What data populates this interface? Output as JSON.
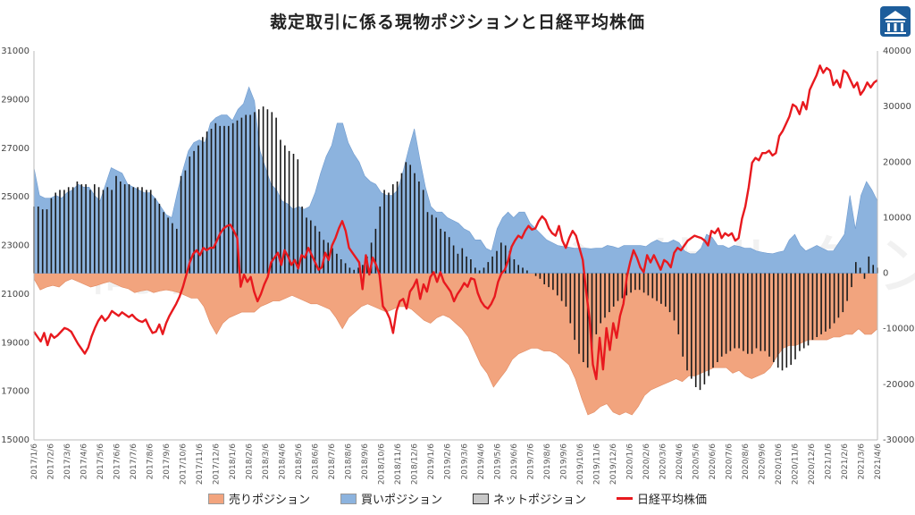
{
  "chart_data": {
    "type": "area",
    "title": "裁定取引に係る現物ポジションと日経平均株価",
    "left_axis": {
      "min": 15000,
      "max": 31000,
      "ticks": [
        31000,
        29000,
        27000,
        25000,
        23000,
        21000,
        19000,
        17000,
        15000
      ]
    },
    "right_axis": {
      "min": -30000,
      "max": 40000,
      "ticks": [
        40000,
        30000,
        20000,
        10000,
        0,
        -10000,
        -20000,
        -30000
      ]
    },
    "x_labels": [
      "2017/1/6",
      "2017/2/6",
      "2017/3/6",
      "2017/4/6",
      "2017/5/6",
      "2017/6/6",
      "2017/7/6",
      "2017/8/6",
      "2017/9/6",
      "2017/10/6",
      "2017/11/6",
      "2017/12/6",
      "2018/1/6",
      "2018/2/6",
      "2018/3/6",
      "2018/4/6",
      "2018/5/6",
      "2018/6/6",
      "2018/7/6",
      "2018/8/6",
      "2018/9/6",
      "2018/10/6",
      "2018/11/6",
      "2018/12/6",
      "2019/1/6",
      "2019/2/6",
      "2019/3/6",
      "2019/4/6",
      "2019/5/6",
      "2019/6/6",
      "2019/7/6",
      "2019/8/6",
      "2019/9/6",
      "2019/10/6",
      "2019/11/6",
      "2019/12/6",
      "2020/1/6",
      "2020/2/6",
      "2020/3/6",
      "2020/4/6",
      "2020/5/6",
      "2020/6/6",
      "2020/7/6",
      "2020/8/6",
      "2020/9/6",
      "2020/10/6",
      "2020/11/6",
      "2020/12/6",
      "2021/1/6",
      "2021/2/6",
      "2021/3/6",
      "2021/4/6"
    ],
    "legend_position": "bottom",
    "grid": false,
    "series": [
      {
        "name": "売りポジション",
        "axis": "right",
        "kind": "area",
        "color": "#f2a47e",
        "values": [
          -1000,
          -3000,
          -2500,
          -2200,
          -2500,
          -1500,
          -1000,
          -1500,
          -2000,
          -2500,
          -2200,
          -1800,
          -1500,
          -2000,
          -2500,
          -2800,
          -3500,
          -3200,
          -3000,
          -3500,
          -3200,
          -3000,
          -3200,
          -3500,
          -4000,
          -4500,
          -4500,
          -6000,
          -9000,
          -11000,
          -9000,
          -8000,
          -7500,
          -7000,
          -7000,
          -7000,
          -6000,
          -5500,
          -5000,
          -5000,
          -4500,
          -4000,
          -4500,
          -5000,
          -5500,
          -5500,
          -6000,
          -6500,
          -8000,
          -10000,
          -8000,
          -7000,
          -6000,
          -5500,
          -6000,
          -6500,
          -7000,
          -6500,
          -6000,
          -6000,
          -6500,
          -7500,
          -8500,
          -9000,
          -8000,
          -7500,
          -8000,
          -9000,
          -10000,
          -11500,
          -14000,
          -16500,
          -18000,
          -20500,
          -19000,
          -17500,
          -15500,
          -14500,
          -14000,
          -13500,
          -13500,
          -14000,
          -14000,
          -14500,
          -15500,
          -16500,
          -19000,
          -22500,
          -25500,
          -25000,
          -24000,
          -23500,
          -25000,
          -25500,
          -25000,
          -25500,
          -24000,
          -22000,
          -21000,
          -20500,
          -20000,
          -19500,
          -19000,
          -19500,
          -18500,
          -18500,
          -18000,
          -17500,
          -17000,
          -17000,
          -17000,
          -18000,
          -17500,
          -18500,
          -19000,
          -18500,
          -18000,
          -17000,
          -15000,
          -13500,
          -13000,
          -13000,
          -12500,
          -12000,
          -12000,
          -12000,
          -12000,
          -11500,
          -11500,
          -11000,
          -11000,
          -10000,
          -11000,
          -11000,
          -10000
        ]
      },
      {
        "name": "買いポジション",
        "axis": "right",
        "kind": "area",
        "color": "#8cb3de",
        "values": [
          19000,
          14000,
          13500,
          13500,
          14000,
          13500,
          14500,
          15000,
          16000,
          15500,
          15500,
          14000,
          13000,
          16000,
          19000,
          18500,
          18000,
          16000,
          15500,
          15000,
          14500,
          14500,
          13500,
          12000,
          10500,
          10000,
          14500,
          18500,
          22000,
          23500,
          24000,
          23500,
          27000,
          28000,
          28500,
          28500,
          27500,
          29500,
          30500,
          33500,
          31000,
          22000,
          19000,
          16000,
          15000,
          13000,
          12500,
          11500,
          12000,
          11500,
          12000,
          14500,
          18000,
          21000,
          23000,
          27000,
          27000,
          23500,
          21500,
          20000,
          17500,
          16500,
          16000,
          14500,
          14000,
          14000,
          15000,
          18500,
          22500,
          26000,
          20500,
          15500,
          12000,
          11000,
          11000,
          10000,
          9500,
          9000,
          8000,
          7500,
          6000,
          6000,
          4500,
          4000,
          8000,
          10000,
          11000,
          10000,
          11000,
          11000,
          9000,
          8000,
          7000,
          6000,
          5500,
          5000,
          4800,
          4700,
          4500,
          4500,
          4500,
          4400,
          4500,
          4500,
          5000,
          4800,
          4500,
          5000,
          5000,
          5000,
          5000,
          4800,
          5500,
          6000,
          5500,
          5500,
          6000,
          5500,
          4000,
          3500,
          3500,
          4500,
          7000,
          6500,
          5000,
          5000,
          4500,
          5000,
          4800,
          4500,
          4500,
          4000,
          3800,
          3600,
          3500,
          3800,
          4000,
          6000,
          7000,
          5000,
          4000,
          4500,
          5000,
          4500,
          4000,
          4000,
          5500,
          7000,
          14000,
          8000,
          14000,
          16500,
          15000,
          13000
        ]
      },
      {
        "name": "ネットポジション",
        "axis": "right",
        "kind": "bar",
        "color": "#1a1a1a",
        "values": [
          12000,
          12000,
          11500,
          11500,
          13500,
          14500,
          15000,
          15000,
          15500,
          15500,
          16500,
          16000,
          16000,
          15000,
          16000,
          15500,
          15000,
          15500,
          15000,
          17500,
          16500,
          16000,
          16000,
          15500,
          15500,
          15500,
          15000,
          15000,
          13500,
          12500,
          11000,
          10000,
          9000,
          8000,
          17500,
          18500,
          21000,
          22000,
          23000,
          24500,
          25500,
          26000,
          27000,
          26500,
          26500,
          26500,
          27000,
          27500,
          28000,
          28500,
          28500,
          29000,
          29500,
          30000,
          29500,
          29000,
          28000,
          24000,
          23000,
          22000,
          21500,
          20500,
          12000,
          10000,
          9500,
          8500,
          7500,
          6000,
          5500,
          4500,
          3500,
          2500,
          1800,
          1000,
          600,
          1000,
          1500,
          3000,
          5500,
          8000,
          12000,
          15000,
          14500,
          16000,
          16500,
          18000,
          20000,
          19500,
          18000,
          16500,
          15000,
          11000,
          10500,
          10000,
          8000,
          7500,
          6500,
          5000,
          3500,
          4500,
          3000,
          2500,
          1000,
          500,
          1000,
          2000,
          3000,
          4000,
          5500,
          5000,
          4000,
          2500,
          1500,
          1000,
          500,
          0,
          -500,
          -1000,
          -2000,
          -2500,
          -3000,
          -4000,
          -5000,
          -6000,
          -9000,
          -12000,
          -14500,
          -16000,
          -17000,
          -14000,
          -11000,
          -9000,
          -8000,
          -7000,
          -6000,
          -5000,
          -4500,
          -4000,
          -3500,
          -3000,
          -3000,
          -3500,
          -4000,
          -4500,
          -5000,
          -5500,
          -6000,
          -7000,
          -8500,
          -11000,
          -15000,
          -17500,
          -19000,
          -20500,
          -21000,
          -20000,
          -18500,
          -17000,
          -16000,
          -15000,
          -14500,
          -14000,
          -13500,
          -13500,
          -14000,
          -14500,
          -14500,
          -13500,
          -14000,
          -14000,
          -15000,
          -16000,
          -17000,
          -17500,
          -17000,
          -16500,
          -15500,
          -14000,
          -13500,
          -13000,
          -12000,
          -11500,
          -11000,
          -10500,
          -10000,
          -9000,
          -8000,
          -7000,
          -5000,
          -2500,
          2000,
          1000,
          -1000,
          3000,
          1500,
          1000
        ]
      },
      {
        "name": "日経平均株価",
        "axis": "left",
        "kind": "line",
        "color": "#e8191e",
        "values": [
          19450,
          19250,
          19050,
          19400,
          18900,
          19350,
          19200,
          19300,
          19450,
          19600,
          19550,
          19450,
          19200,
          18950,
          18750,
          18550,
          18800,
          19250,
          19600,
          19900,
          20100,
          19900,
          20050,
          20300,
          20200,
          20100,
          20250,
          20150,
          20050,
          20150,
          20000,
          19900,
          19850,
          19950,
          19650,
          19400,
          19450,
          19750,
          19350,
          19800,
          20100,
          20350,
          20600,
          20900,
          21300,
          21800,
          22300,
          22650,
          22800,
          22600,
          22900,
          22800,
          22900,
          22900,
          23200,
          23500,
          23700,
          23800,
          23850,
          23600,
          23300,
          21300,
          21800,
          21500,
          21700,
          21100,
          20700,
          21000,
          21400,
          21700,
          22300,
          22500,
          22700,
          22200,
          22800,
          22550,
          22200,
          22400,
          22050,
          22600,
          22500,
          22900,
          22600,
          22300,
          22000,
          22100,
          22700,
          22400,
          23000,
          23300,
          23700,
          24000,
          23600,
          22900,
          22700,
          22500,
          22300,
          21200,
          22600,
          21800,
          22500,
          22200,
          21800,
          20500,
          20300,
          20000,
          19400,
          20300,
          20700,
          20800,
          20400,
          21100,
          21300,
          21600,
          20800,
          21400,
          21100,
          21700,
          21900,
          21500,
          21900,
          21500,
          21300,
          21100,
          20700,
          21000,
          21200,
          21450,
          21300,
          21650,
          21600,
          21050,
          20700,
          20500,
          20400,
          20600,
          20900,
          21500,
          21850,
          22000,
          22400,
          22950,
          23200,
          23400,
          23300,
          23600,
          23800,
          23650,
          23700,
          24000,
          24200,
          24050,
          23700,
          23500,
          23400,
          23800,
          23200,
          22900,
          23300,
          23600,
          23400,
          22900,
          22400,
          21100,
          20000,
          18100,
          17500,
          19200,
          17900,
          19600,
          18700,
          19800,
          19200,
          20100,
          20600,
          21700,
          22300,
          22800,
          22500,
          22100,
          21900,
          22600,
          22300,
          22600,
          22300,
          22000,
          22400,
          22300,
          22100,
          22700,
          22900,
          22800,
          23000,
          23200,
          23300,
          23400,
          23350,
          23300,
          23200,
          23000,
          23600,
          23500,
          23700,
          23300,
          23500,
          23400,
          23500,
          23200,
          23300,
          24100,
          24600,
          25400,
          26400,
          26600,
          26500,
          26800,
          26800,
          26900,
          26700,
          26800,
          27500,
          27700,
          28000,
          28300,
          28800,
          28700,
          28400,
          28900,
          28600,
          29400,
          29700,
          30000,
          30400,
          30100,
          30300,
          30200,
          29600,
          29800,
          29500,
          30200,
          30100,
          29800,
          29500,
          29700,
          29200,
          29400,
          29700,
          29500,
          29700,
          29800
        ]
      }
    ]
  },
  "watermark": "高配当資産コンサルタント",
  "logo_icon": "building-logo-icon"
}
